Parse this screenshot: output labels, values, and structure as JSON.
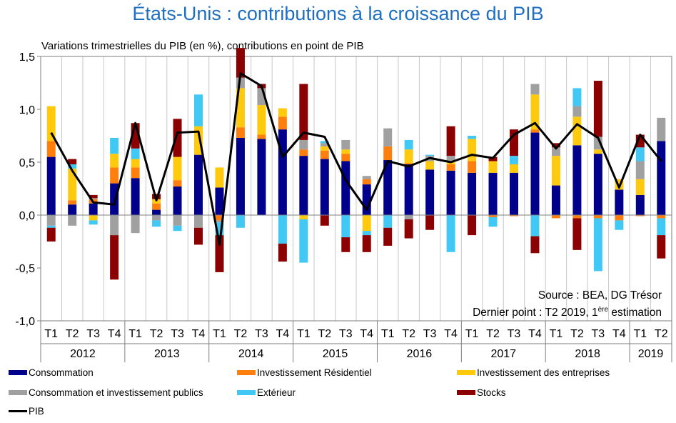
{
  "title": "États-Unis : contributions à la croissance du PIB",
  "subtitle": "Variations trimestrielles du PIB (en %), contributions en point de PIB",
  "source": {
    "line1": "Source : BEA, DG Trésor",
    "line2_prefix": "Dernier point : T2 2019, 1",
    "line2_sup": "ère",
    "line2_suffix": " estimation"
  },
  "chart_data": {
    "type": "bar",
    "stacked": true,
    "ylim": [
      -1.0,
      1.5
    ],
    "yticks": [
      "1,5",
      "1,0",
      "0,5",
      "0,0",
      "-0,5",
      "-1,0"
    ],
    "ytick_values": [
      1.5,
      1.0,
      0.5,
      0.0,
      -0.5,
      -1.0
    ],
    "quarters": [
      "T1",
      "T2",
      "T3",
      "T4",
      "T1",
      "T2",
      "T3",
      "T4",
      "T1",
      "T2",
      "T3",
      "T4",
      "T1",
      "T2",
      "T3",
      "T4",
      "T1",
      "T2",
      "T3",
      "T4",
      "T1",
      "T2",
      "T3",
      "T4",
      "T1",
      "T2",
      "T3",
      "T4",
      "T1",
      "T2"
    ],
    "years": [
      {
        "label": "2012",
        "count": 4
      },
      {
        "label": "2013",
        "count": 4
      },
      {
        "label": "2014",
        "count": 4
      },
      {
        "label": "2015",
        "count": 4
      },
      {
        "label": "2016",
        "count": 4
      },
      {
        "label": "2017",
        "count": 4
      },
      {
        "label": "2018",
        "count": 4
      },
      {
        "label": "2019",
        "count": 2
      }
    ],
    "series": [
      {
        "name": "Consommation",
        "color": "#00008b",
        "values": [
          0.55,
          0.1,
          0.11,
          0.3,
          0.35,
          0.05,
          0.27,
          0.57,
          0.26,
          0.73,
          0.72,
          0.81,
          0.56,
          0.53,
          0.51,
          0.29,
          0.52,
          0.48,
          0.43,
          0.42,
          0.4,
          0.4,
          0.4,
          0.78,
          0.28,
          0.66,
          0.58,
          0.24,
          0.19,
          0.7
        ]
      },
      {
        "name": "Investissement Résidentiel",
        "color": "#ff7f0e",
        "values": [
          0.15,
          0.04,
          0.04,
          0.15,
          0.1,
          0.06,
          0.06,
          0.0,
          -0.05,
          0.1,
          0.04,
          0.12,
          0.06,
          0.08,
          0.07,
          0.05,
          0.13,
          0.01,
          0.0,
          0.06,
          0.11,
          -0.02,
          -0.01,
          0.03,
          -0.03,
          -0.03,
          -0.03,
          -0.05,
          -0.01,
          -0.03
        ]
      },
      {
        "name": "Investissement des entreprises",
        "color": "#ffc90e",
        "values": [
          0.33,
          0.3,
          -0.05,
          0.13,
          0.08,
          0.04,
          0.22,
          0.27,
          0.19,
          0.37,
          0.28,
          0.08,
          -0.04,
          0.04,
          0.04,
          -0.15,
          0.0,
          0.13,
          0.08,
          0.02,
          0.21,
          0.11,
          0.08,
          0.33,
          0.28,
          0.27,
          0.04,
          0.1,
          0.15,
          0.0
        ]
      },
      {
        "name": "Consommation et investissement publics",
        "color": "#a0a0a0",
        "values": [
          -0.1,
          -0.1,
          0.01,
          -0.19,
          -0.17,
          -0.05,
          -0.1,
          -0.12,
          -0.02,
          0.1,
          0.16,
          0.0,
          0.09,
          0.03,
          0.09,
          0.03,
          0.17,
          -0.04,
          0.05,
          0.06,
          0.0,
          0.0,
          0.0,
          0.1,
          0.08,
          0.1,
          0.12,
          0.0,
          0.17,
          0.22
        ]
      },
      {
        "name": "Extérieur",
        "color": "#41c8f5",
        "values": [
          -0.02,
          0.04,
          -0.04,
          0.15,
          0.1,
          -0.06,
          -0.05,
          0.3,
          -0.12,
          -0.12,
          0.0,
          -0.27,
          -0.41,
          0.02,
          -0.21,
          -0.04,
          -0.12,
          0.09,
          0.01,
          -0.35,
          0.03,
          -0.09,
          0.08,
          -0.2,
          0.0,
          0.17,
          -0.5,
          -0.09,
          0.13,
          -0.16
        ]
      },
      {
        "name": "Stocks",
        "color": "#8b0000",
        "values": [
          -0.13,
          0.05,
          0.03,
          -0.42,
          0.24,
          0.05,
          0.36,
          -0.16,
          -0.35,
          0.28,
          0.04,
          -0.17,
          0.53,
          -0.1,
          -0.14,
          -0.16,
          -0.17,
          -0.18,
          -0.14,
          0.28,
          -0.19,
          0.04,
          0.25,
          -0.16,
          0.04,
          -0.3,
          0.53,
          0.0,
          0.12,
          -0.22
        ]
      },
      {
        "name": "PIB",
        "color": "#000000",
        "kind": "line",
        "values": [
          0.78,
          0.42,
          0.12,
          0.1,
          0.87,
          0.14,
          0.78,
          0.79,
          -0.28,
          1.34,
          1.22,
          0.55,
          0.78,
          0.74,
          0.33,
          0.05,
          0.51,
          0.46,
          0.54,
          0.5,
          0.57,
          0.54,
          0.76,
          0.87,
          0.63,
          0.86,
          0.73,
          0.26,
          0.76,
          0.51
        ]
      }
    ]
  },
  "legend": [
    {
      "label": "Consommation",
      "color": "#00008b",
      "kind": "bar"
    },
    {
      "label": "Investissement Résidentiel",
      "color": "#ff7f0e",
      "kind": "bar"
    },
    {
      "label": "Investissement des entreprises",
      "color": "#ffc90e",
      "kind": "bar"
    },
    {
      "label": "Consommation et investissement publics",
      "color": "#a0a0a0",
      "kind": "bar"
    },
    {
      "label": "Extérieur",
      "color": "#41c8f5",
      "kind": "bar"
    },
    {
      "label": "Stocks",
      "color": "#8b0000",
      "kind": "bar"
    },
    {
      "label": "PIB",
      "color": "#000000",
      "kind": "line"
    }
  ]
}
